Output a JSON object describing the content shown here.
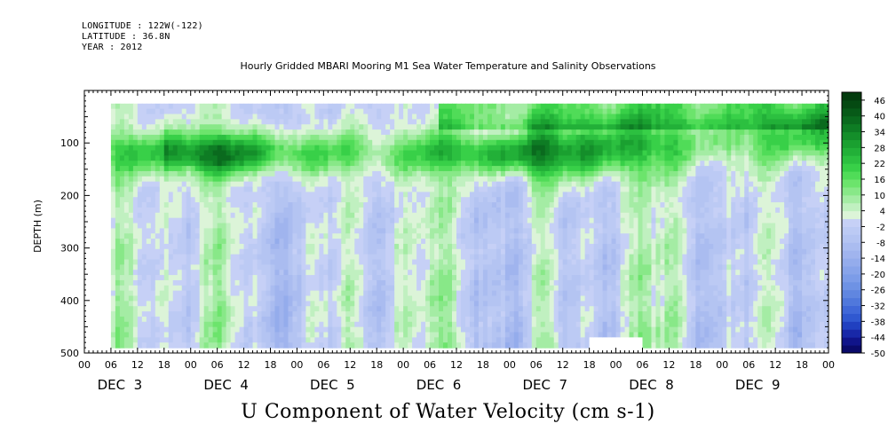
{
  "header": {
    "longitude": "LONGITUDE : 122W(-122)",
    "latitude": "LATITUDE : 36.8N",
    "year": "YEAR : 2012"
  },
  "chart_data": {
    "type": "heatmap",
    "title": "Hourly Gridded MBARI Mooring M1 Sea Water Temperature and Salinity Observations",
    "variable_label": "U Component of Water Velocity (cm s-1)",
    "ylabel": "DEPTH (m)",
    "y_axis_inverted": true,
    "ylim": [
      0,
      500
    ],
    "y_ticks": [
      {
        "v": 100,
        "t": "100"
      },
      {
        "v": 200,
        "t": "200"
      },
      {
        "v": 300,
        "t": "300"
      },
      {
        "v": 400,
        "t": "400"
      },
      {
        "v": 500,
        "t": "500"
      }
    ],
    "x_hour_labels": [
      "00",
      "06",
      "12",
      "18",
      "00",
      "06",
      "12",
      "18",
      "00",
      "06",
      "12",
      "18",
      "00",
      "06",
      "12",
      "18",
      "00",
      "06",
      "12",
      "18",
      "00",
      "06",
      "12",
      "18",
      "00",
      "06",
      "12",
      "18",
      "00"
    ],
    "x_day_labels": [
      "DEC  3",
      "DEC  4",
      "DEC  5",
      "DEC  6",
      "DEC  7",
      "DEC  8",
      "DEC  9"
    ],
    "data_extent_hours": [
      6,
      168
    ],
    "data_depth_range_m": [
      25,
      490
    ],
    "colorbar": {
      "labels": [
        "46",
        "40",
        "34",
        "28",
        "22",
        "16",
        "10",
        "4",
        "-2",
        "-8",
        "-14",
        "-20",
        "-26",
        "-32",
        "-38",
        "-44",
        "-50"
      ],
      "levels": [
        -50,
        -47,
        -44,
        -41,
        -38,
        -35,
        -32,
        -29,
        -26,
        -23,
        -20,
        -17,
        -14,
        -11,
        -8,
        -5,
        -2,
        1,
        4,
        7,
        10,
        13,
        16,
        19,
        22,
        25,
        28,
        31,
        34,
        37,
        40,
        43,
        46,
        49
      ],
      "colors": [
        "#0a0a6a",
        "#10148a",
        "#1828a8",
        "#2040c0",
        "#3058d0",
        "#4068d8",
        "#5078dc",
        "#6086e0",
        "#6e92e4",
        "#7c9ce8",
        "#88a4ea",
        "#94acec",
        "#a0b4ee",
        "#aabcf0",
        "#b4c4f2",
        "#bccaf4",
        "#c6d0f6",
        "#dcf4d8",
        "#c0f0c0",
        "#a4eca4",
        "#88e888",
        "#6ce46c",
        "#50dc58",
        "#38d048",
        "#2cc040",
        "#22b038",
        "#1aa030",
        "#148e2a",
        "#0e7c24",
        "#0a6a1e",
        "#075a18",
        "#054a12",
        "#033c0e"
      ]
    },
    "features": {
      "strong_positive_band_depth_m": [
        80,
        160
      ],
      "near_surface_positive_after_hour": 80,
      "missing_data_segment_hours": [
        114,
        126
      ]
    }
  }
}
